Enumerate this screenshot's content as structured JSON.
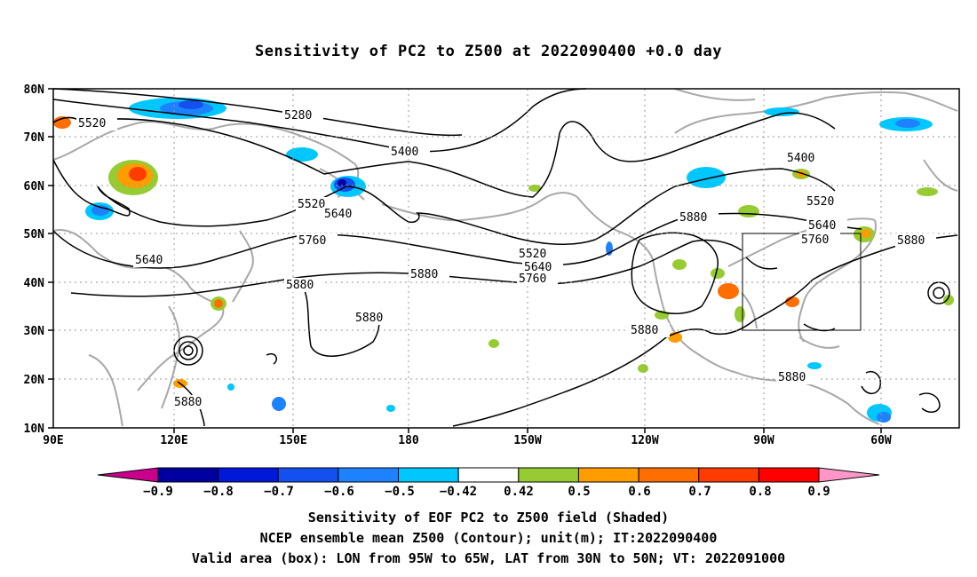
{
  "title": "Sensitivity of PC2 to Z500 at 2022090400 +0.0 day",
  "lat_labels": [
    "80N",
    "70N",
    "60N",
    "50N",
    "40N",
    "30N",
    "20N",
    "10N"
  ],
  "lon_labels": [
    "90E",
    "120E",
    "150E",
    "180",
    "150W",
    "120W",
    "90W",
    "60W"
  ],
  "contour_labels": [
    "5280",
    "5400",
    "5400",
    "5520",
    "5520",
    "5520",
    "5520",
    "5640",
    "5640",
    "5640",
    "5640",
    "5760",
    "5760",
    "5760",
    "5880",
    "5880",
    "5880",
    "5880",
    "5880",
    "5880",
    "5880",
    "5880"
  ],
  "colorbar": {
    "ticks": [
      "−0.9",
      "−0.8",
      "−0.7",
      "−0.6",
      "−0.5",
      "−0.42",
      "0.42",
      "0.5",
      "0.6",
      "0.7",
      "0.8",
      "0.9"
    ],
    "colors": [
      "#0000a0",
      "#0018d8",
      "#1450f0",
      "#1e82ff",
      "#00c8ff",
      "#ffffff",
      "#96cc32",
      "#ff9c00",
      "#ff6e00",
      "#ff3c00",
      "#ff0000"
    ],
    "end_low": "#c8008c",
    "end_high": "#ff96c8"
  },
  "valid_box": {
    "lon_range": [
      -95,
      -65
    ],
    "lat_range": [
      30,
      50
    ]
  },
  "caption": {
    "line1": "Sensitivity of EOF PC2 to Z500 field (Shaded)",
    "line2": "NCEP ensemble mean Z500 (Contour); unit(m); IT:2022090400",
    "line3": "Valid area (box): LON from 95W to 65W, LAT from 30N to 50N; VT: 2022091000"
  }
}
